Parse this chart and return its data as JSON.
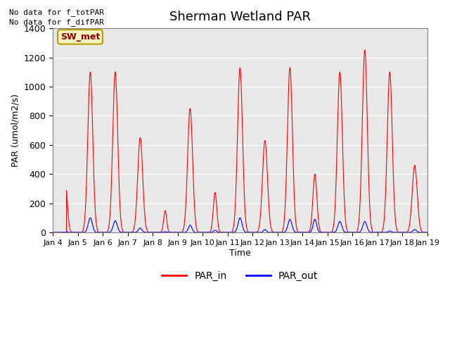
{
  "title": "Sherman Wetland PAR",
  "ylabel": "PAR (umol/m2/s)",
  "xlabel": "Time",
  "no_data_text1": "No data for f_totPAR",
  "no_data_text2": "No data for f_difPAR",
  "station_label": "SW_met",
  "ylim": [
    0,
    1400
  ],
  "legend_labels": [
    "PAR_in",
    "PAR_out"
  ],
  "line_colors": [
    "red",
    "blue"
  ],
  "x_tick_labels": [
    "Jan 4",
    "Jan 5",
    "Jan 6",
    "Jan 7",
    "Jan 8",
    "Jan 9",
    "Jan 10",
    "Jan 11",
    "Jan 12",
    "Jan 13",
    "Jan 14",
    "Jan 15",
    "Jan 16",
    "Jan 17",
    "Jan 18",
    "Jan 19"
  ],
  "background_color": "#e8e8e8",
  "days": 15,
  "par_in_peaks": [
    350,
    1100,
    1100,
    650,
    150,
    850,
    275,
    1130,
    630,
    1130,
    400,
    1100,
    1250,
    1100,
    460
  ],
  "par_out_peaks": [
    10,
    100,
    80,
    30,
    5,
    50,
    15,
    100,
    20,
    90,
    90,
    75,
    75,
    10,
    20
  ],
  "par_in_sigmas": [
    0.08,
    0.1,
    0.1,
    0.1,
    0.06,
    0.1,
    0.07,
    0.1,
    0.1,
    0.1,
    0.08,
    0.1,
    0.1,
    0.1,
    0.1
  ],
  "par_out_sigmas": [
    0.06,
    0.08,
    0.08,
    0.07,
    0.05,
    0.07,
    0.06,
    0.08,
    0.06,
    0.08,
    0.07,
    0.08,
    0.08,
    0.06,
    0.07
  ],
  "yticks": [
    0,
    200,
    400,
    600,
    800,
    1000,
    1200,
    1400
  ]
}
